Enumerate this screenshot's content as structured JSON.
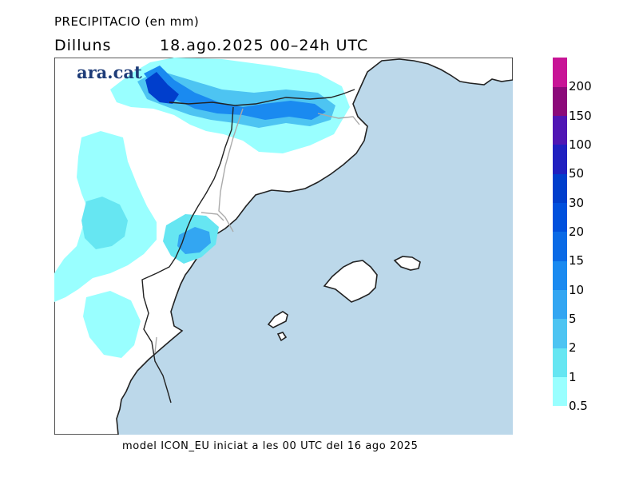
{
  "header": {
    "title": "PRECIPITACIO (en mm)",
    "day": "Dilluns",
    "datetime": "18.ago.2025 00–24h UTC"
  },
  "logo": {
    "text": "ara.cat"
  },
  "footer": {
    "text": "model ICON_EU iniciat a les 00 UTC del 16 ago 2025"
  },
  "legend": {
    "levels": [
      "0.5",
      "1",
      "2",
      "5",
      "10",
      "15",
      "20",
      "30",
      "50",
      "100",
      "150",
      "200"
    ],
    "colors": [
      "#99ffff",
      "#66e6f2",
      "#4dc4f2",
      "#33a6f2",
      "#1a8af0",
      "#0a6ae6",
      "#0050dd",
      "#003ecc",
      "#2020c0",
      "#5016b4",
      "#8c0a7a",
      "#c81496"
    ]
  },
  "map": {
    "sea_color": "#bcd8ea",
    "land_color": "#ffffff"
  }
}
